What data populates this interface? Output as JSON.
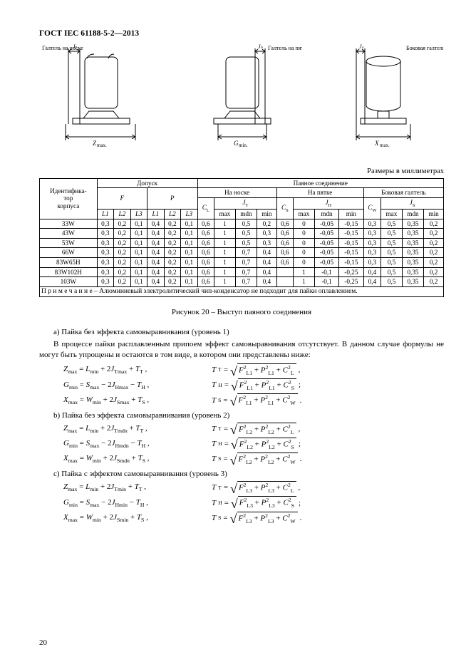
{
  "doc_title": "ГОСТ IEC 61188-5-2—2013",
  "page_number": "20",
  "units_label": "Размеры в миллиметрах",
  "fig_caption": "Рисунок 20 – Выступ паяного соединения",
  "fig_labels": {
    "toe": "Галтель на носке",
    "heel": "Галтель на пятке",
    "side": "Боковая галтель",
    "Jt": "Jₜ",
    "Jh": "Jₕ",
    "Js": "Jₛ",
    "Zmax": "Zmax.",
    "Gmin": "Gmin.",
    "Xmax": "Xmax."
  },
  "table": {
    "ident": "Идентифика-\nтор\nкорпуса",
    "tolerance": "Допуск",
    "solder": "Паяное соединение",
    "F": "F",
    "P": "P",
    "toe": "На носке",
    "heel": "На пятке",
    "side": "Боковая галтель",
    "Jt": "Jₜ",
    "Jh": "Jₕ",
    "Js": "Jₛ",
    "L1": "L1",
    "L2": "L2",
    "L3": "L3",
    "CL": "Cₗ",
    "CS": "Cₛ",
    "CW": "Cw",
    "max": "max",
    "mdn": "mdn",
    "min": "min",
    "rows": [
      {
        "id": "33W",
        "F": [
          "0,3",
          "0,2",
          "0,1"
        ],
        "P": [
          "0,4",
          "0,2",
          "0,1"
        ],
        "CL": "0,6",
        "Jt": [
          "1",
          "0,5",
          "0,2"
        ],
        "CS": "0,6",
        "Jh": [
          "0",
          "-0,05",
          "-0,15"
        ],
        "CW": "0,3",
        "Js": [
          "0,5",
          "0,35",
          "0,2"
        ]
      },
      {
        "id": "43W",
        "F": [
          "0,3",
          "0,2",
          "0,1"
        ],
        "P": [
          "0,4",
          "0,2",
          "0,1"
        ],
        "CL": "0,6",
        "Jt": [
          "1",
          "0,5",
          "0,3"
        ],
        "CS": "0,6",
        "Jh": [
          "0",
          "-0,05",
          "-0,15"
        ],
        "CW": "0,3",
        "Js": [
          "0,5",
          "0,35",
          "0,2"
        ]
      },
      {
        "id": "53W",
        "F": [
          "0,3",
          "0,2",
          "0,1"
        ],
        "P": [
          "0,4",
          "0,2",
          "0,1"
        ],
        "CL": "0,6",
        "Jt": [
          "1",
          "0,5",
          "0,3"
        ],
        "CS": "0,6",
        "Jh": [
          "0",
          "-0,05",
          "-0,15"
        ],
        "CW": "0,3",
        "Js": [
          "0,5",
          "0,35",
          "0,2"
        ]
      },
      {
        "id": "66W",
        "F": [
          "0,3",
          "0,2",
          "0,1"
        ],
        "P": [
          "0,4",
          "0,2",
          "0,1"
        ],
        "CL": "0,6",
        "Jt": [
          "1",
          "0,7",
          "0,4"
        ],
        "CS": "0,6",
        "Jh": [
          "0",
          "-0,05",
          "-0,15"
        ],
        "CW": "0,3",
        "Js": [
          "0,5",
          "0,35",
          "0,2"
        ]
      },
      {
        "id": "83W65H",
        "F": [
          "0,3",
          "0,2",
          "0,1"
        ],
        "P": [
          "0,4",
          "0,2",
          "0,1"
        ],
        "CL": "0,6",
        "Jt": [
          "1",
          "0,7",
          "0,4"
        ],
        "CS": "0,6",
        "Jh": [
          "0",
          "-0,05",
          "-0,15"
        ],
        "CW": "0,3",
        "Js": [
          "0,5",
          "0,35",
          "0,2"
        ]
      },
      {
        "id": "83W102H",
        "F": [
          "0,3",
          "0,2",
          "0,1"
        ],
        "P": [
          "0,4",
          "0,2",
          "0,1"
        ],
        "CL": "0,6",
        "Jt": [
          "1",
          "0,7",
          "0,4"
        ],
        "CS": "",
        "Jh": [
          "1",
          "-0,1",
          "-0,25"
        ],
        "CW": "0,4",
        "Js": [
          "0,5",
          "0,35",
          "0,2"
        ]
      },
      {
        "id": "103W",
        "F": [
          "0,3",
          "0,2",
          "0,1"
        ],
        "P": [
          "0,4",
          "0,2",
          "0,1"
        ],
        "CL": "0,6",
        "Jt": [
          "1",
          "0,7",
          "0,4"
        ],
        "CS": "",
        "Jh": [
          "1",
          "-0,1",
          "-0,25"
        ],
        "CW": "0,4",
        "Js": [
          "0,5",
          "0,35",
          "0,2"
        ]
      }
    ],
    "note": "П р и м е ч а н и е  – Алюминиевый электролитический чип-конденсатор не подходит для пайки оплавлением."
  },
  "text": {
    "level_a": "a)  Пайка без эффекта самовыравнивания (уровень 1)",
    "para1": "В процессе пайки расплавленным припоем эффект самовыравнивания отсутствует. В данном случае формулы не могут быть упрощены и остаются в том виде, в котором они представлены ниже:",
    "level_b": "b)  Пайка без эффекта самовыравнивания (уровень 2)",
    "level_c": "c)  Пайка с эффектом самовыравнивания (уровень 3)"
  }
}
